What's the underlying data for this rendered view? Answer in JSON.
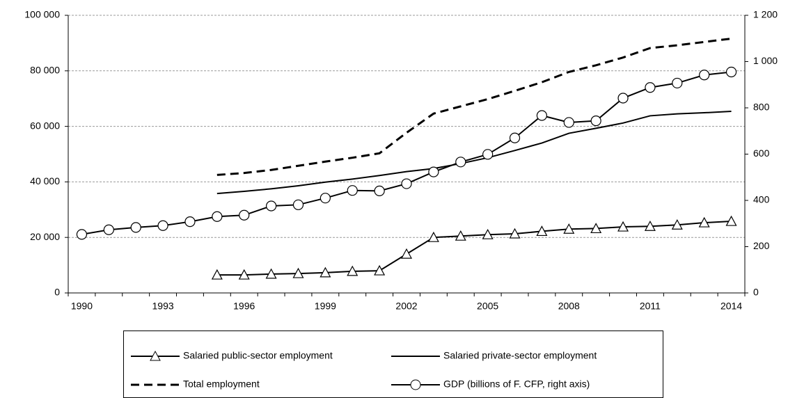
{
  "chart_data": {
    "type": "line",
    "categories": [
      "1990",
      null,
      null,
      "1993",
      null,
      null,
      "1996",
      null,
      null,
      "1999",
      null,
      null,
      "2002",
      null,
      null,
      "2005",
      null,
      null,
      "2008",
      null,
      null,
      "2011",
      null,
      null,
      "2014"
    ],
    "ylim": [
      0,
      100000
    ],
    "yticks": [
      0,
      {
        "value": 20000,
        "label": "20 000"
      },
      {
        "value": 40000,
        "label": "40 000"
      },
      {
        "value": 60000,
        "label": "60 000"
      },
      {
        "value": 80000,
        "label": "80 000"
      },
      {
        "value": 100000,
        "label": "100 000"
      }
    ],
    "y2lim": [
      0,
      1200
    ],
    "y2ticks": [
      0,
      200,
      400,
      600,
      800,
      {
        "value": 1000,
        "label": "1 000"
      },
      {
        "value": 1200,
        "label": "1 200"
      }
    ],
    "grid": true,
    "legend": "bottom",
    "series": [
      {
        "name": "Salaried public-sector employment",
        "color": "#000000",
        "marker": "triangle",
        "dash": false,
        "values": [
          null,
          null,
          null,
          null,
          null,
          6500,
          6500,
          6800,
          7000,
          7300,
          7800,
          8000,
          14000,
          20000,
          20500,
          21000,
          21300,
          22200,
          23000,
          23200,
          23800,
          24000,
          24500,
          25300,
          25800
        ]
      },
      {
        "name": "Salaried private-sector employment",
        "color": "#000000",
        "marker": "none",
        "dash": false,
        "values": [
          null,
          null,
          null,
          null,
          null,
          35800,
          36600,
          37500,
          38600,
          39900,
          41000,
          42300,
          43700,
          44800,
          46600,
          48700,
          51300,
          54000,
          57500,
          59300,
          61200,
          63800,
          64500,
          64900,
          65400
        ]
      },
      {
        "name": "Total employment",
        "color": "#000000",
        "marker": "none",
        "dash": true,
        "values": [
          null,
          null,
          null,
          null,
          null,
          42500,
          43200,
          44300,
          45800,
          47300,
          48700,
          50300,
          57700,
          64600,
          67200,
          69800,
          72800,
          75900,
          79600,
          82000,
          84800,
          88200,
          89200,
          90400,
          91600
        ]
      },
      {
        "name": "GDP (billions of F. CFP, right axis)",
        "color": "#000000",
        "marker": "circle",
        "dash": false,
        "axis": "y2",
        "values": [
          253,
          273,
          283,
          291,
          308,
          330,
          336,
          376,
          381,
          410,
          443,
          441,
          472,
          523,
          566,
          599,
          670,
          767,
          737,
          744,
          842,
          888,
          907,
          942,
          955
        ]
      }
    ]
  }
}
